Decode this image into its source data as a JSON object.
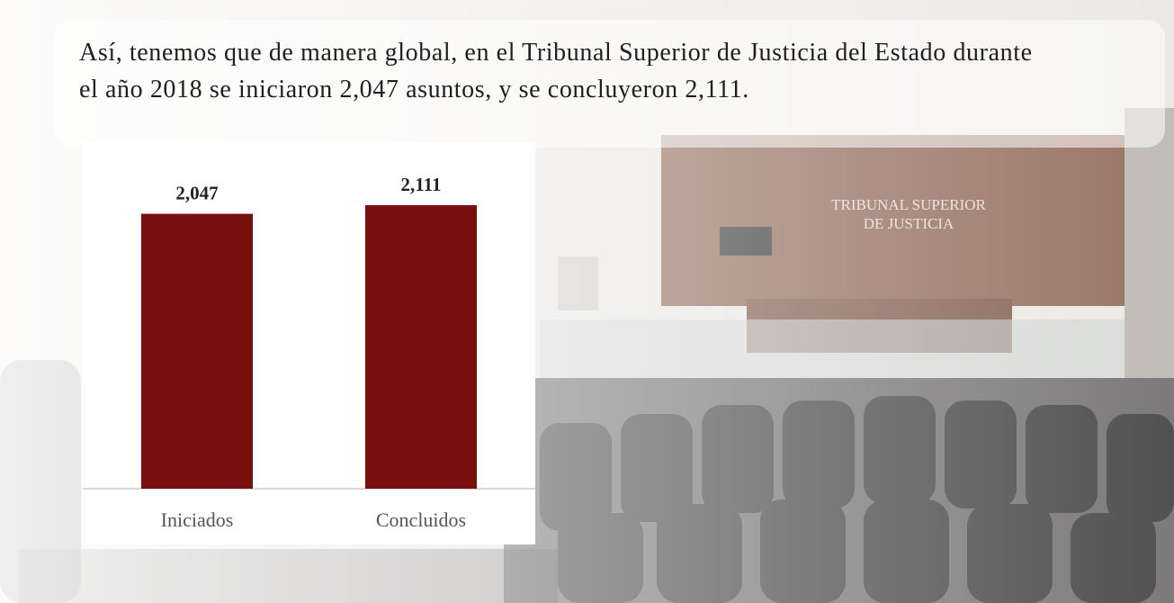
{
  "paragraph": "Así, tenemos que de manera global, en el Tribunal Superior de Justicia del Estado durante el año 2018 se iniciaron 2,047 asuntos, y se concluyeron 2,111.",
  "photo_sign": [
    "TRIBUNAL SUPERIOR",
    "DE JUSTICIA"
  ],
  "chart_data": {
    "type": "bar",
    "categories": [
      "Iniciados",
      "Concluidos"
    ],
    "values": [
      2047,
      2111
    ],
    "value_labels": [
      "2,047",
      "2,111"
    ],
    "color": "#7a0f10"
  }
}
